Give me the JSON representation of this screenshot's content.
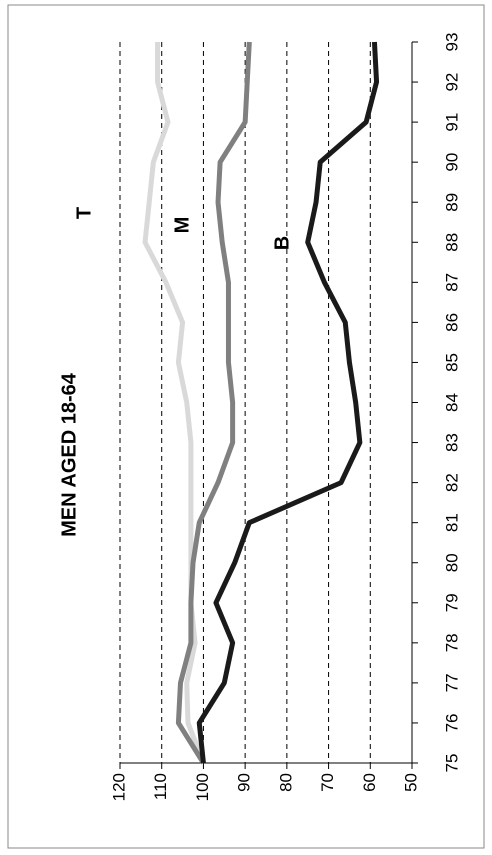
{
  "chart_data": {
    "type": "line",
    "title": "MEN AGED 18-64",
    "x": [
      75,
      76,
      77,
      78,
      79,
      80,
      81,
      82,
      83,
      84,
      85,
      86,
      87,
      88,
      89,
      90,
      91,
      92,
      93
    ],
    "xlim": [
      75,
      93
    ],
    "xticks": [
      75,
      76,
      77,
      78,
      79,
      80,
      81,
      82,
      83,
      84,
      85,
      86,
      87,
      88,
      89,
      90,
      91,
      92,
      93
    ],
    "ylim": [
      50,
      120
    ],
    "yticks": [
      50,
      60,
      70,
      80,
      90,
      100,
      110,
      120
    ],
    "grid": true,
    "series": [
      {
        "name": "T",
        "color": "#d9d9d9",
        "values": [
          100,
          103.7,
          104,
          102,
          103,
          103,
          103,
          103,
          103,
          104,
          106,
          105,
          109,
          114,
          113,
          112,
          108.5,
          111,
          111
        ]
      },
      {
        "name": "M",
        "color": "#808080",
        "values": [
          100,
          106,
          105.5,
          103,
          103,
          102.5,
          101,
          96.5,
          93,
          93,
          94,
          94,
          94,
          95.5,
          96.5,
          96,
          90,
          89.5,
          89
        ]
      },
      {
        "name": "B",
        "color": "#1a1a1a",
        "values": [
          100,
          101,
          95,
          93,
          97,
          92.5,
          89,
          67,
          62.5,
          63.5,
          65,
          66,
          71,
          75,
          73,
          72,
          61,
          58.5,
          59
        ]
      }
    ]
  }
}
